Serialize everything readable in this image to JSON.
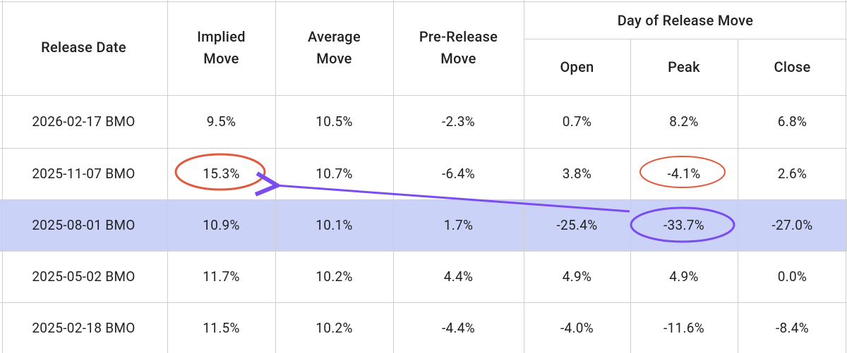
{
  "table": {
    "headers": [
      "Release Date",
      "Implied Move",
      "Average Move",
      "Pre-Release Move"
    ],
    "group": "Day of Release Move",
    "subheaders": [
      "Open",
      "Peak",
      "Close"
    ],
    "rows": [
      [
        "2026-02-17 BMO",
        "9.5%",
        "10.5%",
        "-2.3%",
        "0.7%",
        "8.2%",
        "6.8%"
      ],
      [
        "2025-11-07 BMO",
        "15.3%",
        "10.7%",
        "-6.4%",
        "3.8%",
        "-4.1%",
        "2.6%"
      ],
      [
        "2025-08-01 BMO",
        "10.9%",
        "10.1%",
        "1.7%",
        "-25.4%",
        "-33.7%",
        "-27.0%"
      ],
      [
        "2025-05-02 BMO",
        "11.7%",
        "10.2%",
        "4.4%",
        "4.9%",
        "4.9%",
        "0.0%"
      ],
      [
        "2025-02-18 BMO",
        "11.5%",
        "10.2%",
        "-4.4%",
        "-4.0%",
        "-11.6%",
        "-8.4%"
      ]
    ]
  }
}
